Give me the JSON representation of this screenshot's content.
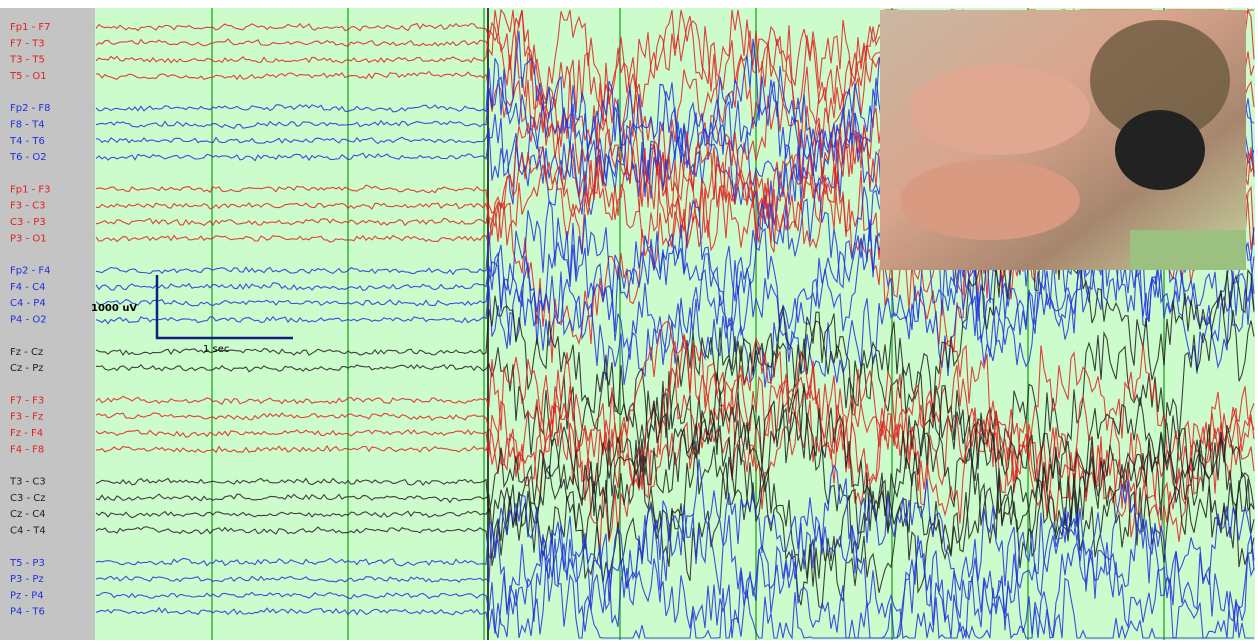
{
  "groups": [
    {
      "color": "#e02020",
      "channels": [
        "Fp1 - F7",
        "F7 - T3",
        "T3 - T5",
        "T5 - O1"
      ]
    },
    {
      "color": "#2030e0",
      "channels": [
        "Fp2 - F8",
        "F8 - T4",
        "T4 - T6",
        "T6 - O2"
      ]
    },
    {
      "color": "#e02020",
      "channels": [
        "Fp1 - F3",
        "F3 - C3",
        "C3 - P3",
        "P3 - O1"
      ]
    },
    {
      "color": "#2030e0",
      "channels": [
        "Fp2 - F4",
        "F4 - C4",
        "C4 - P4",
        "P4 - O2"
      ]
    },
    {
      "color": "#202020",
      "channels": [
        "Fz - Cz",
        "Cz - Pz"
      ]
    },
    {
      "color": "#e02020",
      "channels": [
        "F7 - F3",
        "F3 - Fz",
        "Fz - F4",
        "F4 - F8"
      ]
    },
    {
      "color": "#202020",
      "channels": [
        "T3 - C3",
        "C3 - Cz",
        "Cz - C4",
        "C4 - T4"
      ]
    },
    {
      "color": "#2030e0",
      "channels": [
        "T5 - P3",
        "P3 - Pz",
        "Pz - P4",
        "P4 - T6"
      ]
    }
  ],
  "scale": {
    "amplitude": "1000 uV",
    "time": "1 sec"
  }
}
